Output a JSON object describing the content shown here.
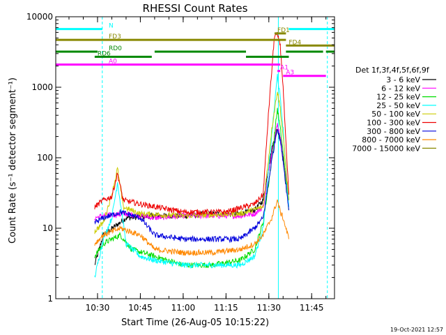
{
  "chart_data": {
    "type": "line",
    "title": "RHESSI Count Rates",
    "xlabel": "Start Time (26-Aug-05 10:15:22)",
    "ylabel": "Count Rate (s⁻¹ detector segment⁻¹)",
    "yscale": "log",
    "ylim": [
      1,
      10000
    ],
    "xlim_minutes": [
      "10:15:22",
      "11:53"
    ],
    "x_ticks": [
      "10:30",
      "10:45",
      "11:00",
      "11:15",
      "11:30",
      "11:45"
    ],
    "y_ticks": [
      "1",
      "10",
      "100",
      "1000",
      "10000"
    ],
    "timestamp": "19-Oct-2021 12:57",
    "legend": {
      "title": "Det 1f,3f,4f,5f,6f,9f",
      "placement": "right",
      "entries": [
        {
          "label": "3 - 6 keV",
          "color": "#000000"
        },
        {
          "label": "6 - 12 keV",
          "color": "#ff00ff"
        },
        {
          "label": "12 - 25 keV",
          "color": "#00dd00"
        },
        {
          "label": "25 - 50 keV",
          "color": "#00ffff"
        },
        {
          "label": "50 - 100 keV",
          "color": "#cccc00"
        },
        {
          "label": "100 - 300 keV",
          "color": "#ee0000"
        },
        {
          "label": "300 - 800 keV",
          "color": "#0000dd"
        },
        {
          "label": "800 - 7000 keV",
          "color": "#ff8800"
        },
        {
          "label": "7000 - 15000 keV",
          "color": "#888800"
        }
      ]
    },
    "series": [
      {
        "name": "3 - 6 keV",
        "color": "#000000",
        "x": [
          "10:29",
          "10:32",
          "10:40",
          "10:50",
          "11:00",
          "11:10",
          "11:20",
          "11:25",
          "11:28",
          "11:31",
          "11:33",
          "11:34",
          "11:35",
          "11:37"
        ],
        "y": [
          3,
          8,
          14,
          15,
          15,
          16,
          16,
          18,
          25,
          130,
          260,
          180,
          100,
          25
        ]
      },
      {
        "name": "6 - 12 keV",
        "color": "#ff00ff",
        "x": [
          "10:29",
          "10:32",
          "10:40",
          "10:45",
          "10:50",
          "11:00",
          "11:10",
          "11:20",
          "11:25",
          "11:28",
          "11:31",
          "11:33",
          "11:34",
          "11:35",
          "11:37"
        ],
        "y": [
          14,
          15,
          16,
          15,
          14,
          15,
          15,
          15,
          16,
          20,
          120,
          300,
          200,
          110,
          25
        ]
      },
      {
        "name": "12 - 25 keV",
        "color": "#00dd00",
        "x": [
          "10:29",
          "10:32",
          "10:35",
          "10:38",
          "10:42",
          "10:50",
          "11:00",
          "11:10",
          "11:20",
          "11:25",
          "11:28",
          "11:31",
          "11:33",
          "11:34",
          "11:35",
          "11:37"
        ],
        "y": [
          4,
          6,
          7,
          8,
          5,
          4,
          3,
          3,
          3.5,
          5,
          12,
          90,
          500,
          260,
          120,
          18
        ]
      },
      {
        "name": "25 - 50 keV",
        "color": "#00ffff",
        "x": [
          "10:29",
          "10:32",
          "10:35",
          "10:37",
          "10:40",
          "10:45",
          "10:50",
          "11:00",
          "11:10",
          "11:20",
          "11:25",
          "11:28",
          "11:31",
          "11:33",
          "11:34",
          "11:35",
          "11:37"
        ],
        "y": [
          2,
          7,
          14,
          45,
          6,
          4,
          3.5,
          3,
          3,
          3,
          4,
          10,
          200,
          1500,
          700,
          250,
          20
        ]
      },
      {
        "name": "50 - 100 keV",
        "color": "#cccc00",
        "x": [
          "10:29",
          "10:32",
          "10:35",
          "10:37",
          "10:39",
          "10:45",
          "11:00",
          "11:20",
          "11:28",
          "11:31",
          "11:33",
          "11:34",
          "11:35",
          "11:37"
        ],
        "y": [
          9,
          12,
          30,
          70,
          20,
          16,
          15,
          16,
          20,
          250,
          900,
          500,
          200,
          25
        ]
      },
      {
        "name": "100 - 300 keV",
        "color": "#ee0000",
        "x": [
          "10:29",
          "10:32",
          "10:35",
          "10:37",
          "10:39",
          "10:45",
          "11:00",
          "11:15",
          "11:25",
          "11:28",
          "11:30",
          "11:32",
          "11:33",
          "11:34",
          "11:35",
          "11:36",
          "11:37"
        ],
        "y": [
          20,
          25,
          28,
          60,
          25,
          22,
          17,
          17,
          22,
          30,
          500,
          5500,
          5500,
          4000,
          1000,
          150,
          30
        ]
      },
      {
        "name": "300 - 800 keV",
        "color": "#0000dd",
        "x": [
          "10:29",
          "10:32",
          "10:38",
          "10:45",
          "10:50",
          "11:00",
          "11:10",
          "11:20",
          "11:25",
          "11:28",
          "11:31",
          "11:33",
          "11:34",
          "11:35",
          "11:37"
        ],
        "y": [
          12,
          14,
          17,
          14,
          8,
          7,
          7,
          7,
          10,
          14,
          90,
          270,
          180,
          90,
          18
        ]
      },
      {
        "name": "800 - 7000 keV",
        "color": "#ff8800",
        "x": [
          "10:29",
          "10:32",
          "10:38",
          "10:45",
          "10:50",
          "11:00",
          "11:10",
          "11:20",
          "11:25",
          "11:28",
          "11:31",
          "11:33",
          "11:34",
          "11:35",
          "11:37"
        ],
        "y": [
          6,
          8,
          10,
          8,
          5,
          4.5,
          4.5,
          5,
          6,
          8,
          14,
          25,
          17,
          14,
          7
        ]
      }
    ],
    "annotations": {
      "vertical_lines": [
        {
          "time": "10:15:22",
          "color": "#00ffff",
          "style": "solid"
        },
        {
          "time": "10:31:40",
          "color": "#00ffff",
          "style": "dashed"
        },
        {
          "time": "11:33:20",
          "color": "#00ffff",
          "style": "solid"
        },
        {
          "time": "11:50:30",
          "color": "#00ffff",
          "style": "dashed"
        }
      ],
      "flag_bars": [
        {
          "label": "N",
          "color": "#00ffff",
          "level": 6700,
          "spans": [
            [
              "10:15:22",
              "10:31:40"
            ],
            [
              "11:37",
              "11:53"
            ]
          ]
        },
        {
          "label": "FD1",
          "color": "#888800",
          "level": 5800,
          "spans": [
            [
              "11:32",
              "11:36"
            ]
          ]
        },
        {
          "label": "FD3",
          "color": "#888800",
          "level": 4700,
          "spans": [
            [
              "10:15:22",
              "11:36"
            ]
          ]
        },
        {
          "label": "FD4",
          "color": "#888800",
          "level": 3900,
          "spans": [
            [
              "11:36",
              "11:53"
            ]
          ]
        },
        {
          "label": "RD0",
          "color": "#008800",
          "level": 3200,
          "spans": [
            [
              "10:15:22",
              "10:30"
            ],
            [
              "10:50",
              "11:22"
            ],
            [
              "11:36",
              "11:49"
            ],
            [
              "11:50",
              "11:53"
            ]
          ]
        },
        {
          "label": "RD6",
          "color": "#008800",
          "level": 2700,
          "spans": [
            [
              "10:29",
              "10:49"
            ],
            [
              "11:22",
              "11:37"
            ]
          ]
        },
        {
          "label": "A0",
          "color": "#ff00ff",
          "level": 2100,
          "spans": [
            [
              "10:15:22",
              "11:34"
            ]
          ]
        },
        {
          "label": "A1",
          "color": "#ff00ff",
          "level": 1700,
          "spans": [
            [
              "11:33",
              "11:34"
            ]
          ]
        },
        {
          "label": "A3",
          "color": "#ff00ff",
          "level": 1450,
          "spans": [
            [
              "11:35",
              "11:50"
            ]
          ]
        }
      ]
    }
  }
}
